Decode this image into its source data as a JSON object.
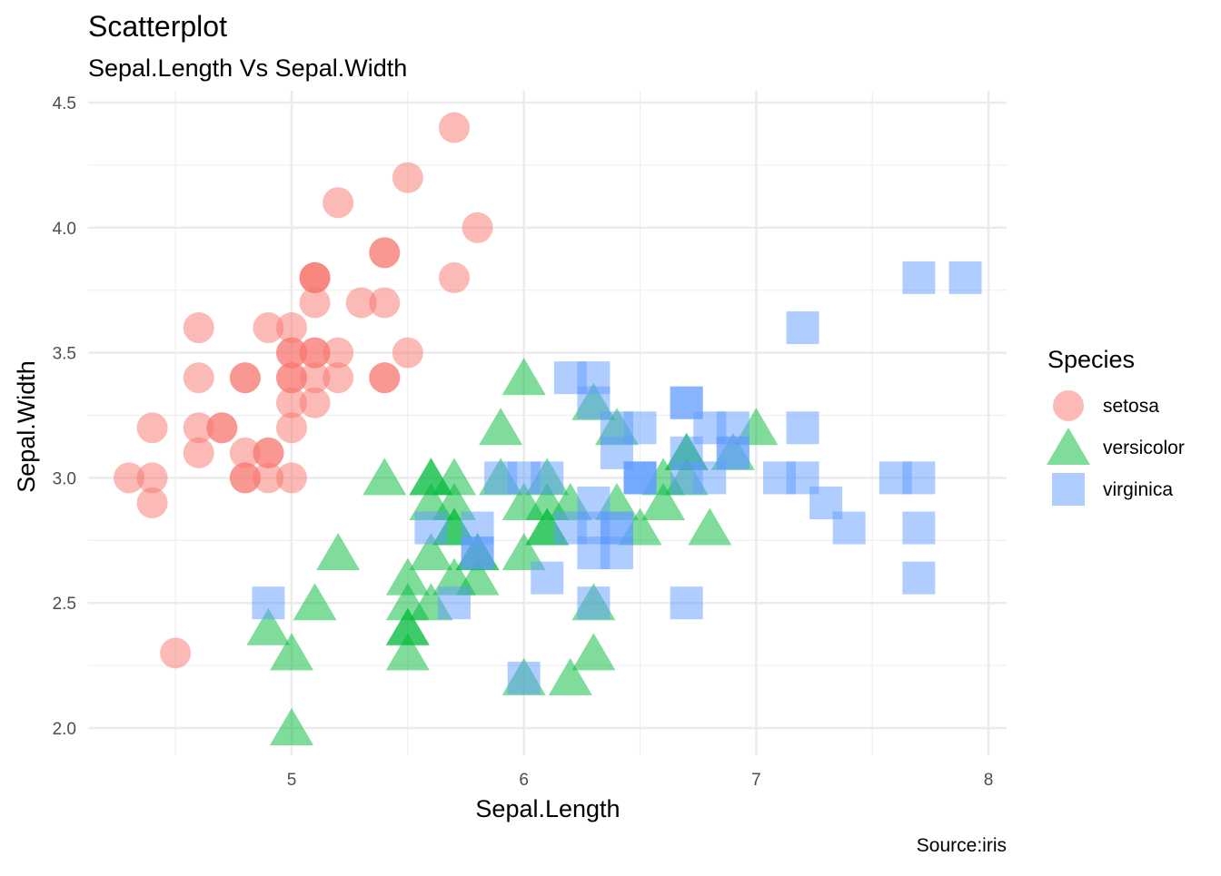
{
  "chart_data": {
    "type": "scatter",
    "title": "Scatterplot",
    "subtitle": "Sepal.Length Vs Sepal.Width",
    "xlabel": "Sepal.Length",
    "ylabel": "Sepal.Width",
    "caption": "Source:iris",
    "xlim": [
      4.2,
      8.1
    ],
    "ylim": [
      1.9,
      4.55
    ],
    "xticks": [
      5,
      6,
      7,
      8
    ],
    "yticks": [
      2.0,
      2.5,
      3.0,
      3.5,
      4.0,
      4.5
    ],
    "ytick_labels": [
      "2.0",
      "2.5",
      "3.0",
      "3.5",
      "4.0",
      "4.5"
    ],
    "grid": true,
    "legend": {
      "title": "Species",
      "position": "right"
    },
    "series": [
      {
        "name": "setosa",
        "shape": "circle",
        "color": "#F8766D",
        "x": [
          5.1,
          4.9,
          4.7,
          4.6,
          5.0,
          5.4,
          4.6,
          5.0,
          4.4,
          4.9,
          5.4,
          4.8,
          4.8,
          4.3,
          5.8,
          5.7,
          5.4,
          5.1,
          5.7,
          5.1,
          5.4,
          5.1,
          4.6,
          5.1,
          4.8,
          5.0,
          5.0,
          5.2,
          5.2,
          4.7,
          4.8,
          5.4,
          5.2,
          5.5,
          4.9,
          5.0,
          5.5,
          4.9,
          4.4,
          5.1,
          5.0,
          4.5,
          4.4,
          5.0,
          5.1,
          4.8,
          5.1,
          4.6,
          5.3,
          5.0
        ],
        "y": [
          3.5,
          3.0,
          3.2,
          3.1,
          3.6,
          3.9,
          3.4,
          3.4,
          2.9,
          3.1,
          3.7,
          3.4,
          3.0,
          3.0,
          4.0,
          4.4,
          3.9,
          3.5,
          3.8,
          3.8,
          3.4,
          3.7,
          3.6,
          3.3,
          3.4,
          3.0,
          3.4,
          3.5,
          3.4,
          3.2,
          3.1,
          3.4,
          4.1,
          4.2,
          3.1,
          3.2,
          3.5,
          3.6,
          3.0,
          3.4,
          3.5,
          2.3,
          3.2,
          3.5,
          3.8,
          3.0,
          3.8,
          3.2,
          3.7,
          3.3
        ]
      },
      {
        "name": "versicolor",
        "shape": "triangle",
        "color": "#00BA38",
        "x": [
          7.0,
          6.4,
          6.9,
          5.5,
          6.5,
          5.7,
          6.3,
          4.9,
          6.6,
          5.2,
          5.0,
          5.9,
          6.0,
          6.1,
          5.6,
          6.7,
          5.6,
          5.8,
          6.2,
          5.6,
          5.9,
          6.1,
          6.3,
          6.1,
          6.4,
          6.6,
          6.8,
          6.7,
          6.0,
          5.7,
          5.5,
          5.5,
          5.8,
          6.0,
          5.4,
          6.0,
          6.7,
          6.3,
          5.6,
          5.5,
          5.5,
          6.1,
          5.8,
          5.0,
          5.6,
          5.7,
          5.7,
          6.2,
          5.1,
          5.7
        ],
        "y": [
          3.2,
          3.2,
          3.1,
          2.3,
          2.8,
          2.8,
          3.3,
          2.4,
          2.9,
          2.7,
          2.0,
          3.0,
          2.2,
          2.9,
          2.9,
          3.1,
          3.0,
          2.7,
          2.2,
          2.5,
          3.2,
          2.8,
          2.5,
          2.8,
          2.9,
          3.0,
          2.8,
          3.0,
          2.9,
          2.6,
          2.4,
          2.4,
          2.7,
          2.7,
          3.0,
          3.4,
          3.1,
          2.3,
          3.0,
          2.5,
          2.6,
          3.0,
          2.6,
          2.3,
          2.7,
          3.0,
          2.9,
          2.9,
          2.5,
          2.8
        ]
      },
      {
        "name": "virginica",
        "shape": "square",
        "color": "#619CFF",
        "x": [
          6.3,
          5.8,
          7.1,
          6.3,
          6.5,
          7.6,
          4.9,
          7.3,
          6.7,
          7.2,
          6.5,
          6.4,
          6.8,
          5.7,
          5.8,
          6.4,
          6.5,
          7.7,
          7.7,
          6.0,
          6.9,
          5.6,
          7.7,
          6.3,
          6.7,
          7.2,
          6.2,
          6.1,
          6.4,
          7.2,
          7.4,
          7.9,
          6.4,
          6.3,
          6.1,
          7.7,
          6.3,
          6.4,
          6.0,
          6.9,
          6.7,
          6.9,
          5.8,
          6.8,
          6.7,
          6.7,
          6.3,
          6.5,
          6.2,
          5.9
        ],
        "y": [
          3.3,
          2.7,
          3.0,
          2.9,
          3.0,
          3.0,
          2.5,
          2.9,
          2.5,
          3.6,
          3.2,
          2.7,
          3.0,
          2.5,
          2.8,
          3.2,
          3.0,
          3.8,
          2.6,
          2.2,
          3.2,
          2.8,
          2.8,
          2.7,
          3.3,
          3.2,
          2.8,
          3.0,
          2.8,
          3.0,
          2.8,
          3.8,
          2.8,
          2.8,
          2.6,
          3.0,
          3.4,
          3.1,
          3.0,
          3.1,
          3.1,
          3.1,
          2.7,
          3.2,
          3.3,
          3.0,
          2.5,
          3.0,
          3.4,
          3.0
        ]
      }
    ]
  }
}
